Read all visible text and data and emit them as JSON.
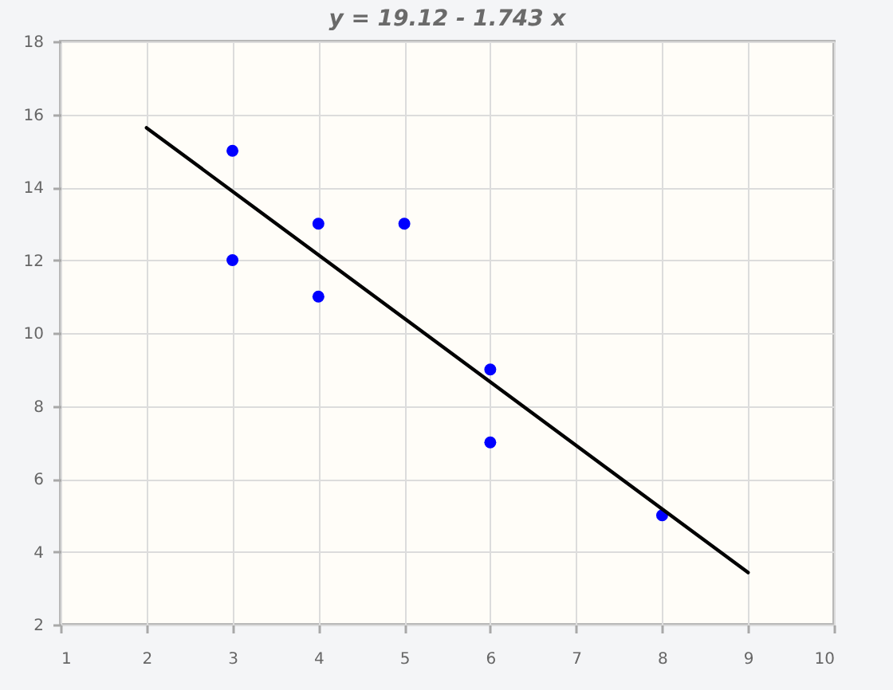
{
  "chart_data": {
    "type": "scatter",
    "title": "y = 19.12 - 1.743 x",
    "x": [
      3,
      3,
      4,
      4,
      5,
      6,
      6,
      8
    ],
    "series": [
      {
        "color": "#0000ff",
        "marker": "circle",
        "values": [
          15,
          12,
          13,
          11,
          13,
          9,
          7,
          5
        ]
      },
      {
        "type": "line",
        "color": "#000000",
        "x": [
          2,
          9
        ],
        "values": [
          15.63,
          3.43
        ]
      }
    ],
    "xlim": [
      1,
      10
    ],
    "xticks": [
      1,
      2,
      3,
      4,
      5,
      6,
      7,
      8,
      9,
      10
    ],
    "ylim": [
      2,
      18
    ],
    "yticks": [
      2,
      4,
      6,
      8,
      10,
      12,
      14,
      16,
      18
    ],
    "grid": true
  }
}
